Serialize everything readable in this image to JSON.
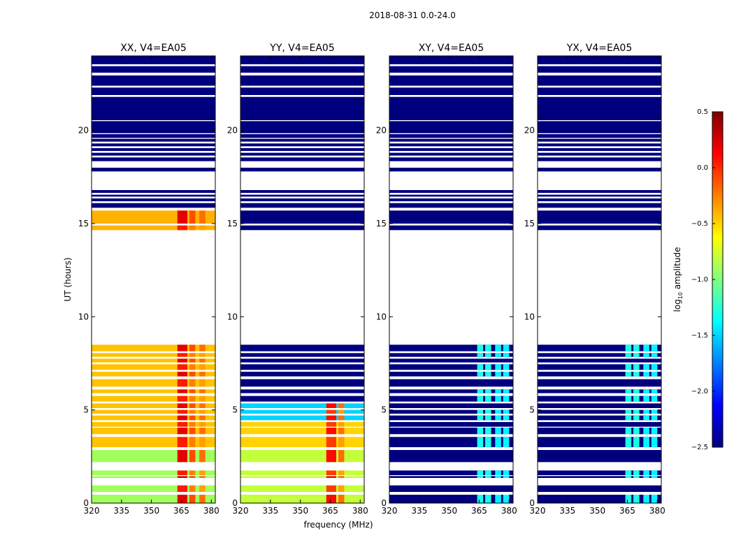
{
  "figure": {
    "suptitle": "2018-08-31 0.0-24.0",
    "ylabel": "UT (hours)",
    "xlabel": "frequency (MHz)"
  },
  "chart_data": {
    "type": "heatmap",
    "title": "2018-08-31 0.0-24.0",
    "xlabel": "frequency (MHz)",
    "ylabel": "UT (hours)",
    "xlim": [
      320,
      382
    ],
    "ylim": [
      0,
      24
    ],
    "x_ticks": [
      320,
      335,
      350,
      365,
      380
    ],
    "y_ticks": [
      0,
      5,
      10,
      15,
      20
    ],
    "colorbar": {
      "label": "log10 amplitude",
      "label_main": "log",
      "label_sub": "10",
      "label_rest": " amplitude",
      "range": [
        -2.5,
        0.5
      ],
      "ticks": [
        "0.5",
        "0.0",
        "−0.5",
        "−1.0",
        "−1.5",
        "−2.0",
        "−2.5"
      ],
      "tick_values": [
        0.5,
        0.0,
        -0.5,
        -1.0,
        -1.5,
        -2.0,
        -2.5
      ],
      "colors": [
        "#00007f",
        "#0000ff",
        "#007fff",
        "#00ffff",
        "#7fff7f",
        "#ffff00",
        "#ff7f00",
        "#ff0000",
        "#7f0000"
      ]
    },
    "rows_hours": [
      [
        0,
        0.45
      ],
      [
        0.6,
        0.95
      ],
      [
        1.35,
        1.45
      ],
      [
        1.5,
        1.75
      ],
      [
        2.2,
        2.85
      ],
      [
        3.0,
        3.55
      ],
      [
        3.7,
        4.05
      ],
      [
        4.1,
        4.35
      ],
      [
        4.45,
        4.7
      ],
      [
        4.8,
        5.0
      ],
      [
        5.1,
        5.35
      ],
      [
        5.45,
        5.75
      ],
      [
        5.9,
        6.1
      ],
      [
        6.25,
        6.65
      ],
      [
        6.8,
        7.05
      ],
      [
        7.15,
        7.45
      ],
      [
        7.55,
        7.75
      ],
      [
        7.85,
        8.05
      ],
      [
        8.15,
        8.5
      ],
      [
        14.65,
        14.9
      ],
      [
        15.0,
        15.7
      ],
      [
        15.85,
        16.1
      ],
      [
        16.2,
        16.35
      ],
      [
        16.45,
        16.55
      ],
      [
        16.65,
        16.8
      ],
      [
        17.8,
        18.0
      ],
      [
        18.35,
        18.55
      ],
      [
        18.65,
        18.8
      ],
      [
        18.9,
        19.05
      ],
      [
        19.15,
        19.3
      ],
      [
        19.4,
        19.55
      ],
      [
        19.6,
        19.8
      ],
      [
        19.85,
        20.5
      ],
      [
        20.55,
        21.8
      ],
      [
        21.9,
        22.3
      ],
      [
        22.4,
        22.95
      ],
      [
        23.1,
        23.45
      ],
      [
        23.55,
        24.0
      ]
    ],
    "panels": [
      {
        "title": "XX, V4=EA05",
        "bands": [
          {
            "from": 0,
            "to": 2.85,
            "level": -0.9
          },
          {
            "from": 2.85,
            "to": 8.5,
            "level": -0.45
          },
          {
            "from": 14.65,
            "to": 15.7,
            "level": -0.4
          },
          {
            "from": 15.85,
            "to": 24,
            "level": -2.5
          }
        ],
        "hotspots": [
          {
            "fmin": 363,
            "fmax": 368,
            "level": 0.2
          },
          {
            "fmin": 369,
            "fmax": 372,
            "level": -0.1
          },
          {
            "fmin": 374,
            "fmax": 377,
            "level": -0.2
          }
        ]
      },
      {
        "title": "YY, V4=EA05",
        "bands": [
          {
            "from": 0,
            "to": 2.85,
            "level": -0.8
          },
          {
            "from": 3.0,
            "to": 4.35,
            "level": -0.5
          },
          {
            "from": 4.45,
            "to": 5.35,
            "level": -1.5
          },
          {
            "from": 5.45,
            "to": 24,
            "level": -2.5
          }
        ],
        "hotspots": [
          {
            "fmin": 363,
            "fmax": 368,
            "level": 0.1
          },
          {
            "fmin": 369,
            "fmax": 372,
            "level": -0.2
          }
        ]
      },
      {
        "title": "XY, V4=EA05",
        "bands": [
          {
            "from": 0,
            "to": 24,
            "level": -2.5
          }
        ],
        "hotspots": [
          {
            "fmin": 364,
            "fmax": 367,
            "level": -1.3
          },
          {
            "fmin": 368,
            "fmax": 371,
            "level": -1.3
          },
          {
            "fmin": 373,
            "fmax": 376,
            "level": -1.4
          },
          {
            "fmin": 377,
            "fmax": 380,
            "level": -1.4
          }
        ]
      },
      {
        "title": "YX, V4=EA05",
        "bands": [
          {
            "from": 0,
            "to": 24,
            "level": -2.5
          }
        ],
        "hotspots": [
          {
            "fmin": 364,
            "fmax": 367,
            "level": -1.3
          },
          {
            "fmin": 368,
            "fmax": 371,
            "level": -1.3
          },
          {
            "fmin": 373,
            "fmax": 376,
            "level": -1.4
          },
          {
            "fmin": 377,
            "fmax": 380,
            "level": -1.4
          }
        ]
      }
    ]
  }
}
